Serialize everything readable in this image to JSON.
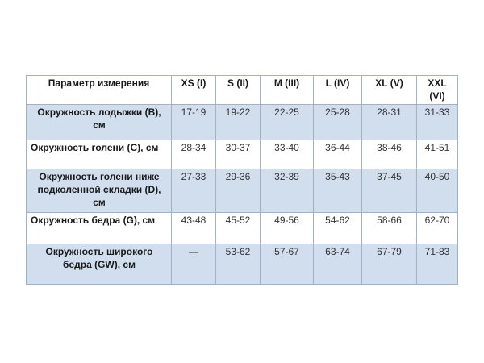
{
  "table": {
    "header": [
      "Параметр измерения",
      "XS (I)",
      "S (II)",
      "M (III)",
      "L (IV)",
      "XL (V)",
      "XXL (VI)"
    ],
    "rows": [
      {
        "param": "Окружность лодыжки (B), см",
        "values": [
          "17-19",
          "19-22",
          "22-25",
          "25-28",
          "28-31",
          "31-33"
        ]
      },
      {
        "param": "Окружность голени (C), см",
        "values": [
          "28-34",
          "30-37",
          "33-40",
          "36-44",
          "38-46",
          "41-51"
        ]
      },
      {
        "param": "Окружность голени ниже подколенной складки (D), см",
        "values": [
          "27-33",
          "29-36",
          "32-39",
          "35-43",
          "37-45",
          "40-50"
        ]
      },
      {
        "param": "Окружность бедра (G), см",
        "values": [
          "43-48",
          "45-52",
          "49-56",
          "54-62",
          "58-66",
          "62-70"
        ]
      },
      {
        "param": "Окружность широкого бедра (GW), см",
        "values": [
          "—",
          "53-62",
          "57-67",
          "63-74",
          "67-79",
          "71-83"
        ]
      }
    ]
  },
  "colors": {
    "shaded_row": "#d0deee",
    "border": "#9fb3c7"
  }
}
